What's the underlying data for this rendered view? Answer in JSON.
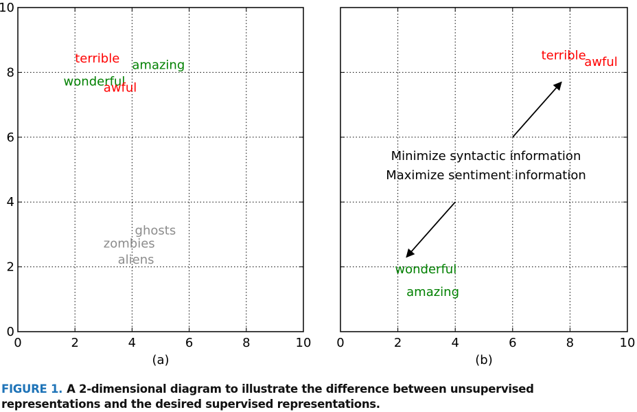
{
  "chart_data": [
    {
      "type": "scatter",
      "panel_label": "(a)",
      "xlim": [
        0,
        10
      ],
      "ylim": [
        0,
        10
      ],
      "xticks": [
        "0",
        "2",
        "4",
        "6",
        "8",
        "10"
      ],
      "yticks": [
        "0",
        "2",
        "4",
        "6",
        "8",
        "10"
      ],
      "grid": true,
      "points": [
        {
          "word": "terrible",
          "x": 2.0,
          "y": 8.3,
          "color": "#ff0000"
        },
        {
          "word": "amazing",
          "x": 4.0,
          "y": 8.1,
          "color": "#008000"
        },
        {
          "word": "wonderful",
          "x": 1.6,
          "y": 7.6,
          "color": "#008000"
        },
        {
          "word": "awful",
          "x": 3.0,
          "y": 7.4,
          "color": "#ff0000"
        },
        {
          "word": "ghosts",
          "x": 4.1,
          "y": 3.0,
          "color": "#8c8c8c"
        },
        {
          "word": "zombies",
          "x": 3.0,
          "y": 2.6,
          "color": "#8c8c8c"
        },
        {
          "word": "aliens",
          "x": 3.5,
          "y": 2.1,
          "color": "#8c8c8c"
        }
      ]
    },
    {
      "type": "scatter",
      "panel_label": "(b)",
      "xlim": [
        0,
        10
      ],
      "ylim": [
        0,
        10
      ],
      "xticks": [
        "0",
        "2",
        "4",
        "6",
        "8",
        "10"
      ],
      "yticks": [
        "",
        "",
        "",
        "",
        "",
        ""
      ],
      "grid": true,
      "points": [
        {
          "word": "terrible",
          "x": 7.0,
          "y": 8.4,
          "color": "#ff0000"
        },
        {
          "word": "awful",
          "x": 8.5,
          "y": 8.2,
          "color": "#ff0000"
        },
        {
          "word": "wonderful",
          "x": 1.9,
          "y": 1.8,
          "color": "#008000"
        },
        {
          "word": "amazing",
          "x": 2.3,
          "y": 1.1,
          "color": "#008000"
        }
      ],
      "annotations": [
        "Minimize syntactic information",
        "Maximize sentiment information"
      ],
      "arrows": [
        {
          "from": [
            6.0,
            6.0
          ],
          "to": [
            7.7,
            7.7
          ]
        },
        {
          "from": [
            4.0,
            4.0
          ],
          "to": [
            2.3,
            2.3
          ]
        }
      ]
    }
  ],
  "caption": {
    "label": "FIGURE 1.",
    "text": "A 2-dimensional diagram to illustrate the difference between unsupervised representations and the desired supervised representations."
  }
}
